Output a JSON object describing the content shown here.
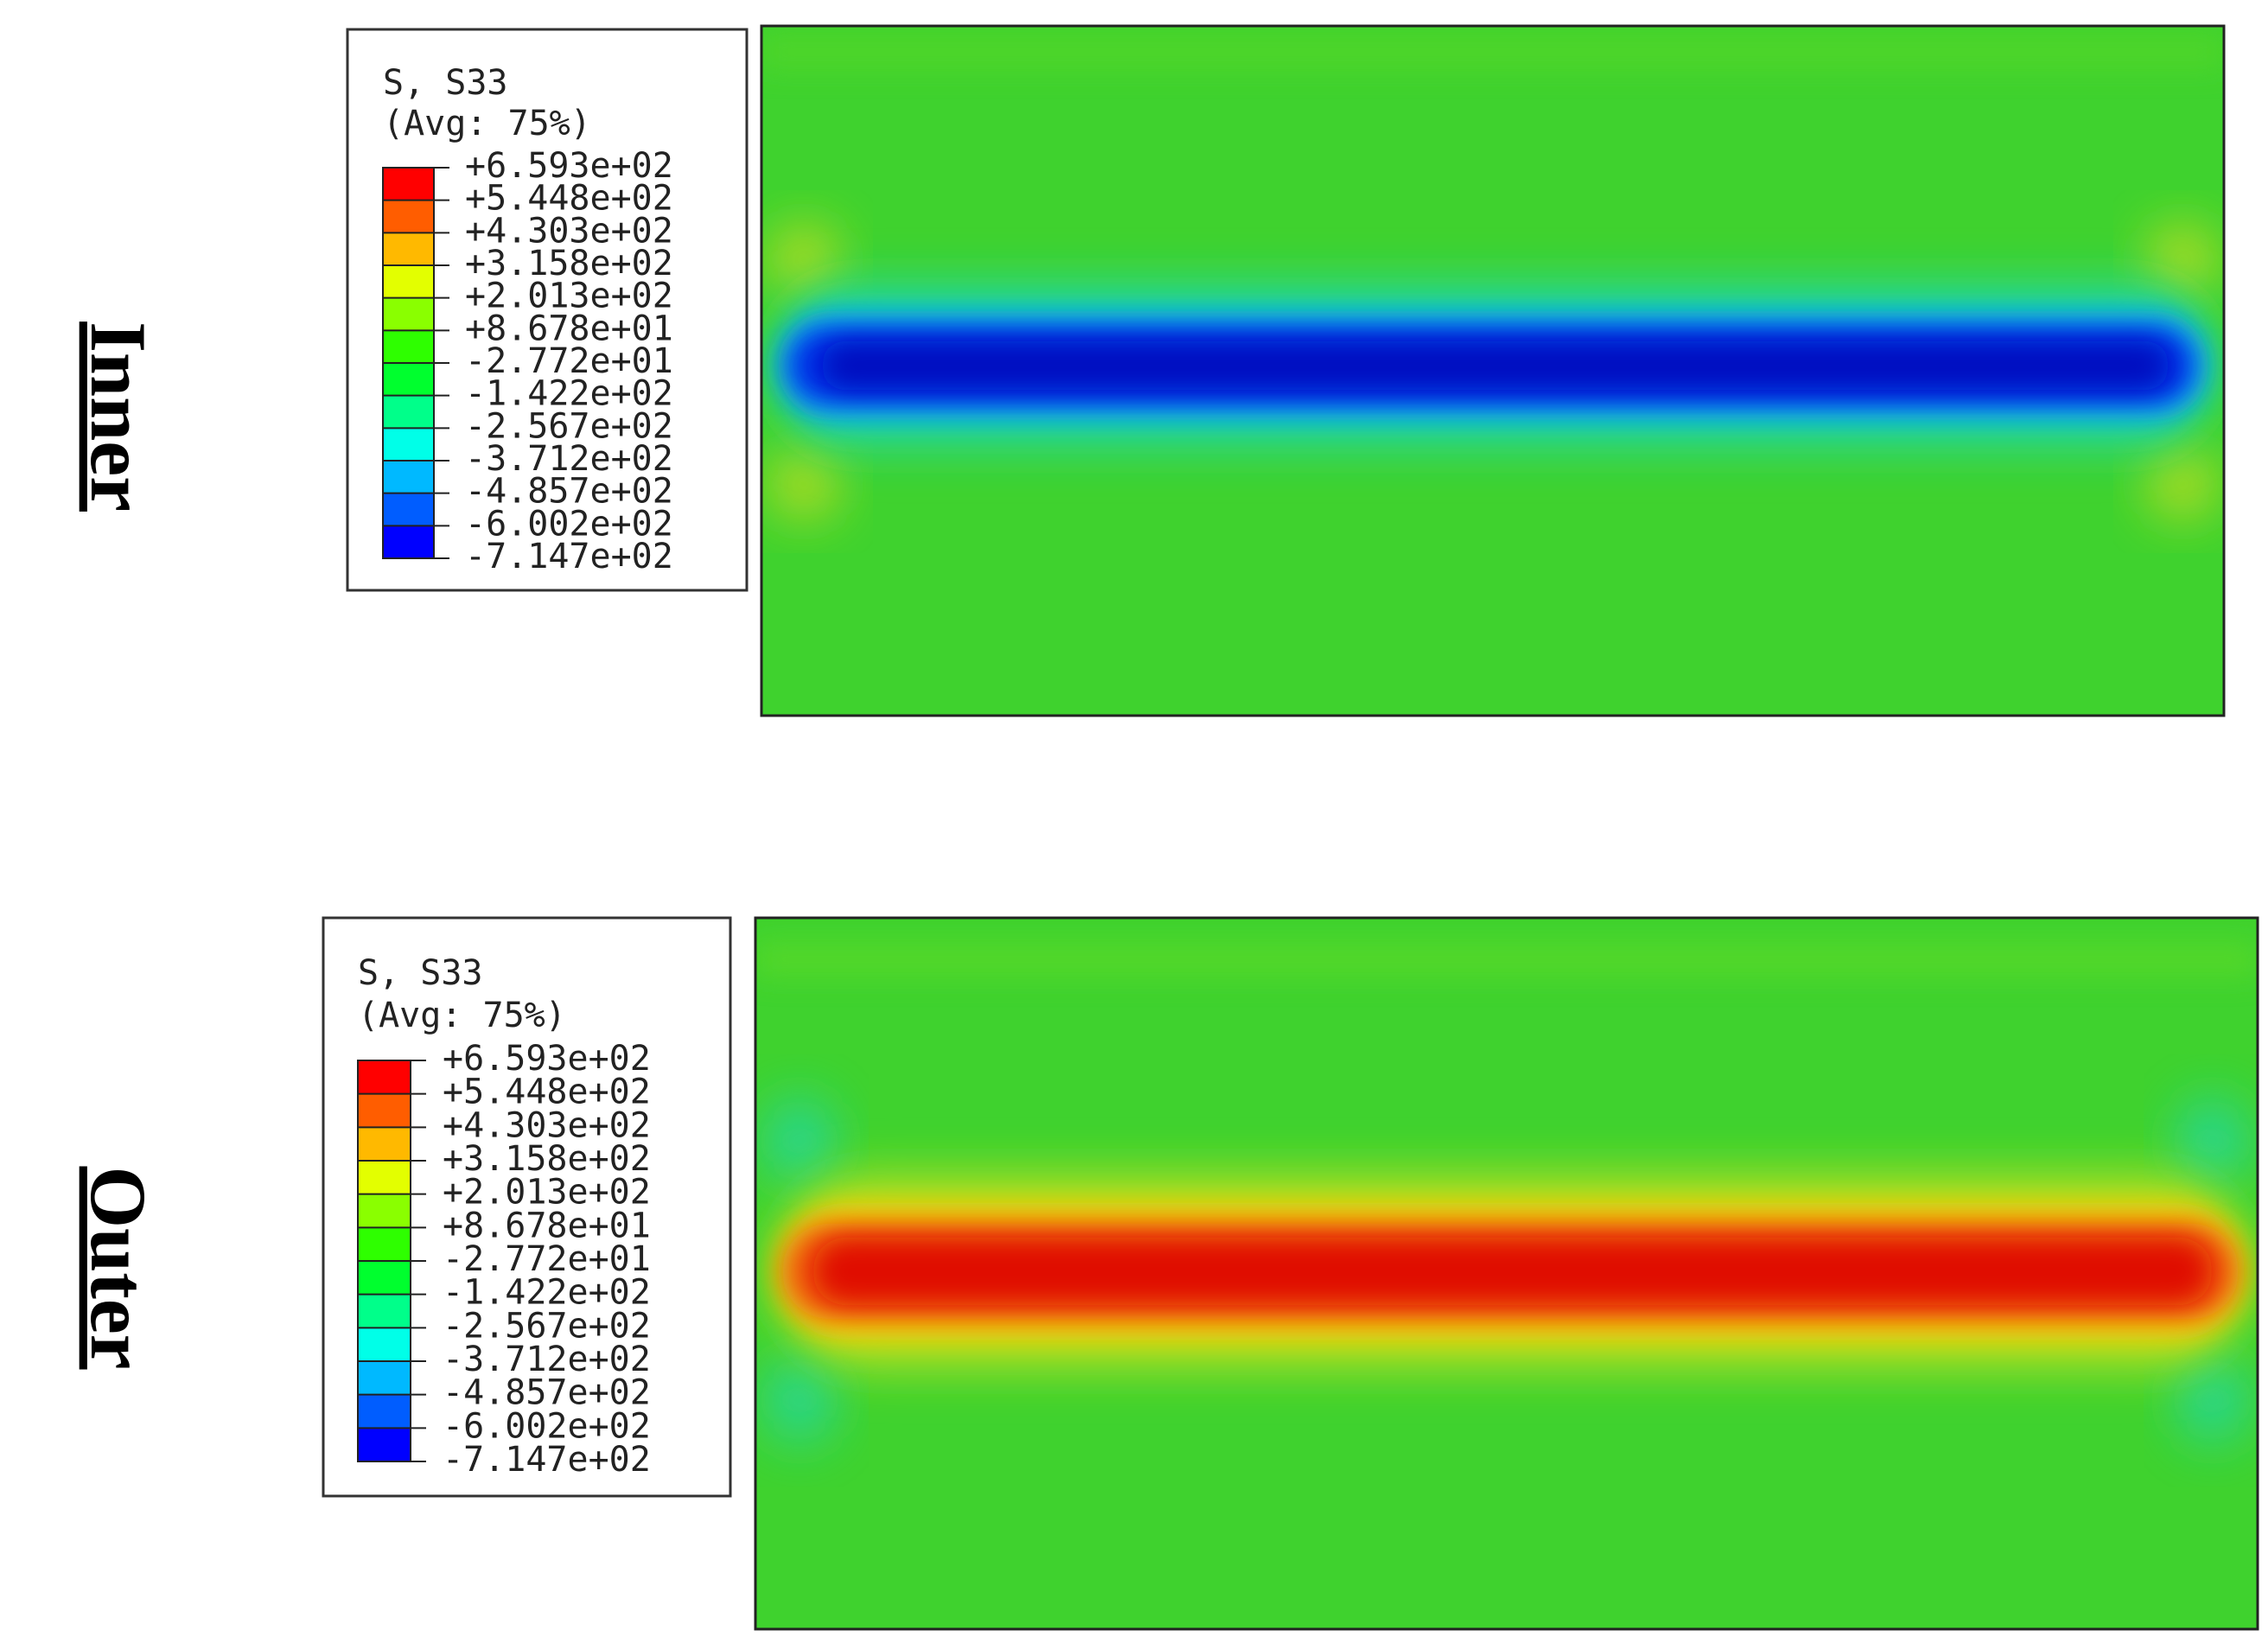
{
  "panels": [
    {
      "label": "Inner",
      "legend": {
        "title": "S, S33",
        "subtitle": "(Avg: 75%)",
        "ticks": [
          "+6.593e+02",
          "+5.448e+02",
          "+4.303e+02",
          "+3.158e+02",
          "+2.013e+02",
          "+8.678e+01",
          "-2.772e+01",
          "-1.422e+02",
          "-2.567e+02",
          "-3.712e+02",
          "-4.857e+02",
          "-6.002e+02",
          "-7.147e+02"
        ]
      }
    },
    {
      "label": "Outer",
      "legend": {
        "title": "S, S33",
        "subtitle": "(Avg: 75%)",
        "ticks": [
          "+6.593e+02",
          "+5.448e+02",
          "+4.303e+02",
          "+3.158e+02",
          "+2.013e+02",
          "+8.678e+01",
          "-2.772e+01",
          "-1.422e+02",
          "-2.567e+02",
          "-3.712e+02",
          "-4.857e+02",
          "-6.002e+02",
          "-7.147e+02"
        ]
      }
    }
  ]
}
